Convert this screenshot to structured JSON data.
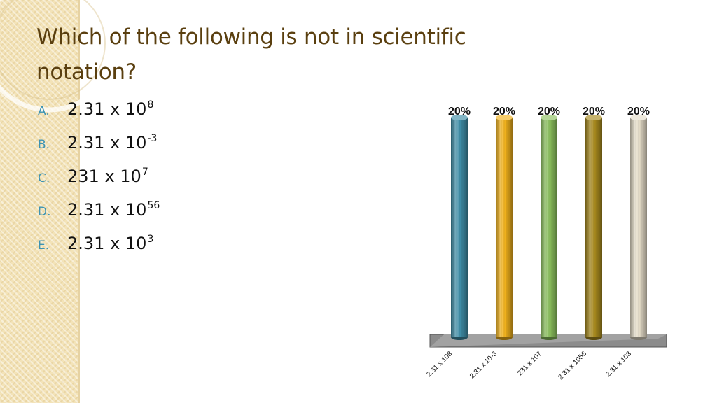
{
  "title": "Which of the following is not in scientific notation?",
  "options": [
    {
      "letter": "A.",
      "text": "2.31 x 10",
      "exponent": "8"
    },
    {
      "letter": "B.",
      "text": "2.31 x 10",
      "exponent": "-3"
    },
    {
      "letter": "C.",
      "text": "231 x 10",
      "exponent": "7"
    },
    {
      "letter": "D.",
      "text": "2.31 x 10",
      "exponent": "56"
    },
    {
      "letter": "E.",
      "text": "2.31 x 10",
      "exponent": "3"
    }
  ],
  "chart_data": {
    "type": "bar",
    "categories": [
      "2.31 x 108",
      "2.31 x 10-3",
      "231 x 107",
      "2.31 x 1056",
      "2.31 x 103"
    ],
    "values": [
      20,
      20,
      20,
      20,
      20
    ],
    "data_labels": [
      "20%",
      "20%",
      "20%",
      "20%",
      "20%"
    ],
    "ylim": [
      0,
      20
    ],
    "bar_colors": [
      "#3f8ea8",
      "#f2b21c",
      "#8bc05d",
      "#a88a1e",
      "#e4dcc8"
    ],
    "floor_color": "#8c8c8c",
    "grid": false
  }
}
